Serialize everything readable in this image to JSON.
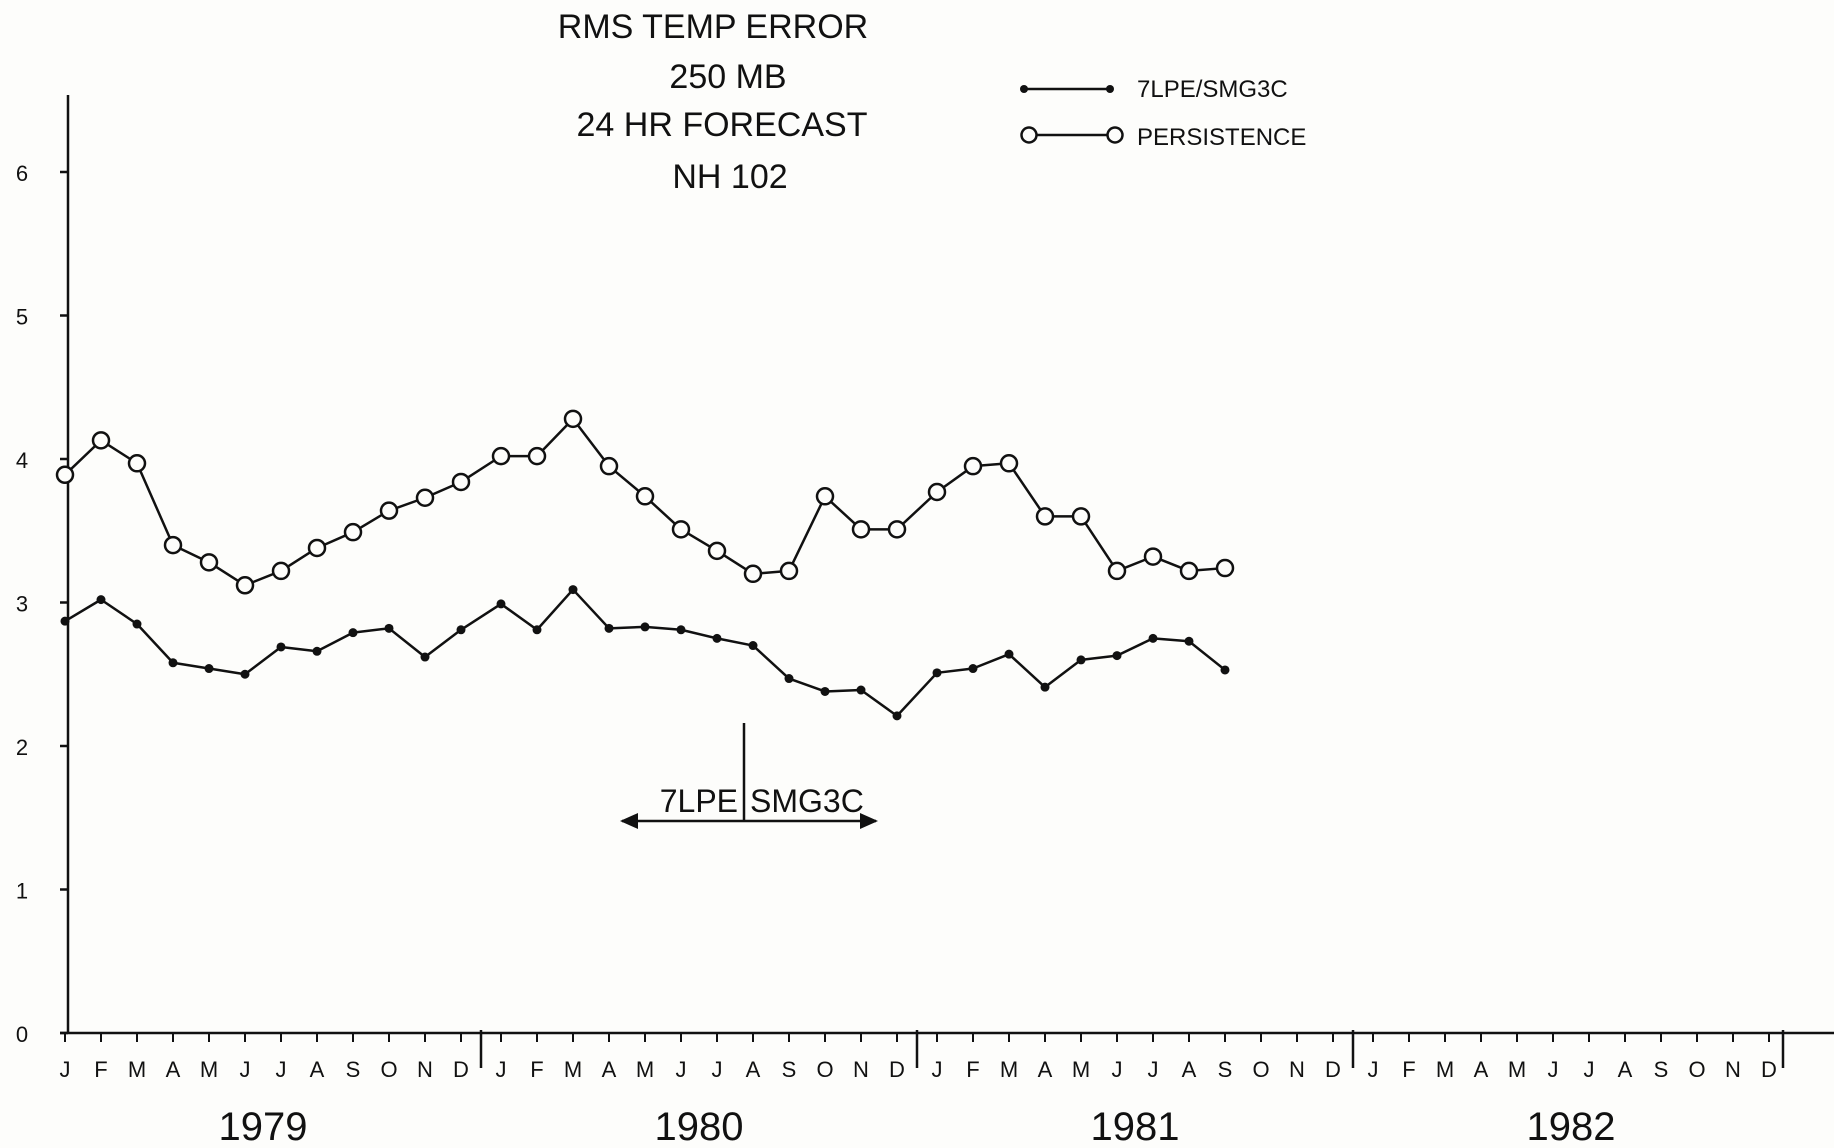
{
  "chart_data": {
    "type": "line",
    "title_lines": [
      "RMS TEMP ERROR",
      "250 MB",
      "24 HR FORECAST",
      "NH 102"
    ],
    "xlabel": "",
    "ylabel": "",
    "ylim": [
      0,
      6.5
    ],
    "yticks": [
      0,
      1,
      2,
      3,
      4,
      5,
      6
    ],
    "grid": false,
    "legend_position": "top-center",
    "months": [
      "J",
      "F",
      "M",
      "A",
      "M",
      "J",
      "J",
      "A",
      "S",
      "O",
      "N",
      "D"
    ],
    "years": [
      "1979",
      "1980",
      "1981",
      "1982"
    ],
    "x_start": "1979-01",
    "series": [
      {
        "name": "7LPE/SMG3C",
        "marker": "dot",
        "values": [
          2.87,
          3.02,
          2.85,
          2.58,
          2.54,
          2.5,
          2.69,
          2.66,
          2.79,
          2.82,
          2.62,
          2.81,
          2.99,
          2.81,
          3.09,
          2.82,
          2.83,
          2.81,
          2.75,
          2.7,
          2.47,
          2.38,
          2.39,
          2.21,
          2.51,
          2.54,
          2.64,
          2.41,
          2.6,
          2.63,
          2.75,
          2.73,
          2.53
        ]
      },
      {
        "name": "PERSISTENCE",
        "marker": "circle",
        "values": [
          3.89,
          4.13,
          3.97,
          3.4,
          3.28,
          3.12,
          3.22,
          3.38,
          3.49,
          3.64,
          3.73,
          3.84,
          4.02,
          4.02,
          4.28,
          3.95,
          3.74,
          3.51,
          3.36,
          3.2,
          3.22,
          3.74,
          3.51,
          3.51,
          3.77,
          3.95,
          3.97,
          3.6,
          3.6,
          3.22,
          3.32,
          3.22,
          3.24
        ]
      }
    ],
    "annotation": {
      "left_text": "7LPE",
      "right_text": "SMG3C",
      "divider_month": "1980-09"
    }
  }
}
